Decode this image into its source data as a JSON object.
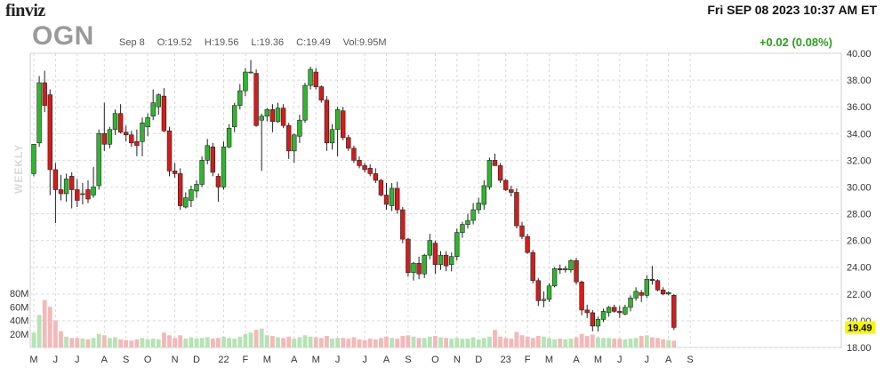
{
  "header": {
    "logo": "finviz",
    "datetime": "Fri SEP 08 2023 10:37 AM ET",
    "ticker": "OGN",
    "date_label": "Sep 8",
    "open": "O:19.52",
    "high": "H:19.56",
    "low": "L:19.36",
    "close": "C:19.49",
    "volume": "Vol:9.95M",
    "change": "+0.02 (0.08%)",
    "period": "WEEKLY"
  },
  "colors": {
    "up": "#2fb62f",
    "down": "#d41c1c",
    "vol_up": "#b5e3b5",
    "vol_down": "#f4b8b8",
    "grid": "#d9d9d9",
    "last_bg": "#f7f700",
    "change_text": "#2aa11a"
  },
  "chart_data": {
    "type": "candlestick",
    "title": "OGN",
    "interval": "weekly",
    "y_ticks": [
      "40.00",
      "38.00",
      "36.00",
      "34.00",
      "32.00",
      "30.00",
      "28.00",
      "26.00",
      "24.00",
      "22.00",
      "20.00",
      "18.00"
    ],
    "ylim": [
      18,
      40
    ],
    "volume_ticks": [
      "80M",
      "60M",
      "40M",
      "20M"
    ],
    "volume_ylim": [
      0,
      80
    ],
    "last_price": "19.49",
    "x_labels": [
      {
        "label": "M",
        "i": 0
      },
      {
        "label": "J",
        "i": 4
      },
      {
        "label": "J",
        "i": 8
      },
      {
        "label": "A",
        "i": 13
      },
      {
        "label": "S",
        "i": 17
      },
      {
        "label": "O",
        "i": 21
      },
      {
        "label": "N",
        "i": 26
      },
      {
        "label": "D",
        "i": 30
      },
      {
        "label": "22",
        "i": 35
      },
      {
        "label": "F",
        "i": 39
      },
      {
        "label": "M",
        "i": 43
      },
      {
        "label": "A",
        "i": 48
      },
      {
        "label": "M",
        "i": 52
      },
      {
        "label": "J",
        "i": 56
      },
      {
        "label": "J",
        "i": 61
      },
      {
        "label": "A",
        "i": 65
      },
      {
        "label": "S",
        "i": 69
      },
      {
        "label": "O",
        "i": 74
      },
      {
        "label": "N",
        "i": 78
      },
      {
        "label": "D",
        "i": 82
      },
      {
        "label": "23",
        "i": 87
      },
      {
        "label": "F",
        "i": 91
      },
      {
        "label": "M",
        "i": 95
      },
      {
        "label": "A",
        "i": 100
      },
      {
        "label": "M",
        "i": 104
      },
      {
        "label": "J",
        "i": 108
      },
      {
        "label": "J",
        "i": 113
      },
      {
        "label": "A",
        "i": 117
      },
      {
        "label": "S",
        "i": 121
      }
    ],
    "candles": [
      [
        31.0,
        33.2,
        30.8,
        33.2,
        22
      ],
      [
        33.3,
        38.3,
        33.0,
        37.8,
        48
      ],
      [
        37.8,
        38.7,
        35.6,
        36.1,
        70
      ],
      [
        36.9,
        37.3,
        29.4,
        31.3,
        60
      ],
      [
        31.3,
        31.8,
        27.3,
        29.8,
        40
      ],
      [
        29.8,
        30.9,
        29.0,
        29.5,
        24
      ],
      [
        29.5,
        31.0,
        28.9,
        30.6,
        16
      ],
      [
        30.8,
        31.1,
        28.4,
        29.8,
        14
      ],
      [
        29.8,
        30.6,
        28.5,
        29.0,
        14
      ],
      [
        29.5,
        30.3,
        28.7,
        29.5,
        13
      ],
      [
        29.8,
        30.5,
        28.8,
        29.1,
        12
      ],
      [
        29.4,
        31.5,
        29.2,
        30.0,
        14
      ],
      [
        30.1,
        34.3,
        29.8,
        34.0,
        20
      ],
      [
        34.0,
        36.3,
        32.7,
        33.2,
        18
      ],
      [
        33.2,
        34.5,
        32.9,
        34.3,
        14
      ],
      [
        34.3,
        35.8,
        33.9,
        35.5,
        15
      ],
      [
        35.5,
        36.2,
        34.0,
        34.1,
        12
      ],
      [
        34.1,
        34.6,
        33.4,
        33.9,
        11
      ],
      [
        33.9,
        34.2,
        33.0,
        33.3,
        10
      ],
      [
        33.4,
        34.3,
        32.3,
        33.1,
        12
      ],
      [
        33.4,
        35.2,
        32.3,
        34.8,
        14
      ],
      [
        34.5,
        35.5,
        33.8,
        35.2,
        12
      ],
      [
        35.3,
        37.3,
        35.0,
        36.3,
        13
      ],
      [
        36.0,
        37.0,
        35.4,
        36.9,
        12
      ],
      [
        36.8,
        37.4,
        34.1,
        34.2,
        22
      ],
      [
        34.2,
        34.5,
        30.8,
        31.2,
        18
      ],
      [
        31.2,
        31.8,
        30.7,
        31.0,
        14
      ],
      [
        31.0,
        31.4,
        28.3,
        28.6,
        18
      ],
      [
        28.5,
        29.6,
        28.4,
        29.2,
        13
      ],
      [
        29.0,
        30.1,
        28.5,
        29.8,
        15
      ],
      [
        29.7,
        30.5,
        29.2,
        30.2,
        13
      ],
      [
        30.2,
        32.3,
        30.0,
        32.0,
        14
      ],
      [
        32.0,
        33.6,
        31.7,
        33.1,
        15
      ],
      [
        33.0,
        33.3,
        30.8,
        31.1,
        13
      ],
      [
        30.8,
        31.0,
        28.9,
        30.0,
        14
      ],
      [
        30.0,
        33.4,
        29.8,
        33.0,
        16
      ],
      [
        33.0,
        34.7,
        32.9,
        34.4,
        14
      ],
      [
        34.5,
        36.3,
        34.1,
        36.1,
        13
      ],
      [
        36.1,
        37.7,
        35.8,
        37.2,
        16
      ],
      [
        37.2,
        38.9,
        36.8,
        38.6,
        20
      ],
      [
        38.6,
        39.5,
        38.5,
        38.6,
        22
      ],
      [
        38.5,
        38.8,
        34.5,
        34.6,
        26
      ],
      [
        35.0,
        35.5,
        31.2,
        35.3,
        28
      ],
      [
        35.3,
        35.9,
        34.9,
        35.8,
        18
      ],
      [
        35.8,
        36.2,
        34.1,
        34.9,
        17
      ],
      [
        34.9,
        36.3,
        34.8,
        35.9,
        15
      ],
      [
        35.9,
        36.2,
        34.4,
        34.6,
        14
      ],
      [
        34.6,
        34.8,
        32.1,
        32.7,
        16
      ],
      [
        32.7,
        34.0,
        31.8,
        33.9,
        13
      ],
      [
        33.8,
        35.4,
        33.3,
        35.0,
        15
      ],
      [
        35.0,
        37.8,
        34.8,
        37.6,
        18
      ],
      [
        37.6,
        39.0,
        37.3,
        38.8,
        16
      ],
      [
        38.6,
        38.9,
        37.3,
        37.5,
        15
      ],
      [
        37.5,
        37.6,
        36.3,
        36.5,
        14
      ],
      [
        36.5,
        36.8,
        32.7,
        33.3,
        17
      ],
      [
        33.3,
        34.7,
        32.8,
        34.3,
        13
      ],
      [
        34.3,
        36.0,
        32.3,
        35.8,
        14
      ],
      [
        35.7,
        36.0,
        33.5,
        33.7,
        14
      ],
      [
        33.7,
        33.9,
        32.7,
        32.9,
        13
      ],
      [
        32.9,
        33.1,
        31.8,
        32.0,
        15
      ],
      [
        32.0,
        32.3,
        31.4,
        31.6,
        12
      ],
      [
        31.6,
        31.8,
        31.1,
        31.3,
        11
      ],
      [
        31.4,
        31.7,
        30.8,
        31.0,
        13
      ],
      [
        31.0,
        31.4,
        30.3,
        30.5,
        12
      ],
      [
        30.5,
        30.6,
        29.3,
        29.4,
        14
      ],
      [
        29.4,
        30.3,
        28.3,
        28.7,
        16
      ],
      [
        28.6,
        30.3,
        28.2,
        29.9,
        14
      ],
      [
        29.9,
        30.4,
        28.0,
        28.3,
        13
      ],
      [
        28.3,
        28.5,
        25.8,
        26.1,
        17
      ],
      [
        26.1,
        26.2,
        23.3,
        23.6,
        18
      ],
      [
        23.6,
        24.4,
        23.0,
        24.3,
        16
      ],
      [
        24.3,
        24.8,
        23.1,
        23.5,
        14
      ],
      [
        23.5,
        25.0,
        23.2,
        24.9,
        14
      ],
      [
        24.9,
        26.5,
        24.6,
        26.0,
        16
      ],
      [
        25.8,
        26.0,
        23.5,
        24.2,
        17
      ],
      [
        24.2,
        25.2,
        23.8,
        24.9,
        15
      ],
      [
        24.9,
        25.2,
        23.7,
        24.1,
        14
      ],
      [
        24.2,
        25.1,
        23.7,
        24.8,
        13
      ],
      [
        24.8,
        26.9,
        24.5,
        26.6,
        14
      ],
      [
        26.6,
        27.4,
        26.2,
        27.2,
        13
      ],
      [
        27.2,
        28.0,
        26.9,
        27.5,
        13
      ],
      [
        27.5,
        28.8,
        27.2,
        28.3,
        15
      ],
      [
        28.3,
        29.2,
        28.0,
        28.8,
        12
      ],
      [
        28.7,
        30.5,
        28.3,
        30.1,
        14
      ],
      [
        30.0,
        32.2,
        29.8,
        32.0,
        16
      ],
      [
        32.0,
        32.5,
        31.6,
        31.6,
        26
      ],
      [
        31.6,
        31.8,
        30.3,
        30.5,
        16
      ],
      [
        30.5,
        30.6,
        29.7,
        29.8,
        14
      ],
      [
        29.8,
        30.1,
        29.3,
        29.6,
        13
      ],
      [
        29.6,
        29.9,
        26.9,
        27.1,
        23
      ],
      [
        27.1,
        27.4,
        26.1,
        26.3,
        18
      ],
      [
        26.3,
        26.5,
        25.0,
        25.1,
        16
      ],
      [
        25.1,
        25.3,
        22.8,
        23.0,
        14
      ],
      [
        23.0,
        23.2,
        21.1,
        21.5,
        17
      ],
      [
        21.5,
        22.2,
        21.0,
        21.6,
        16
      ],
      [
        21.6,
        22.8,
        21.4,
        22.6,
        14
      ],
      [
        22.6,
        24.0,
        22.5,
        23.9,
        12
      ],
      [
        23.9,
        24.2,
        23.5,
        23.8,
        13
      ],
      [
        23.8,
        24.1,
        23.6,
        23.9,
        12
      ],
      [
        23.8,
        24.6,
        23.6,
        24.5,
        13
      ],
      [
        24.5,
        24.7,
        22.7,
        22.9,
        15
      ],
      [
        22.9,
        23.0,
        20.4,
        20.8,
        20
      ],
      [
        20.8,
        21.2,
        20.2,
        20.6,
        17
      ],
      [
        20.6,
        20.8,
        19.2,
        19.6,
        19
      ],
      [
        19.6,
        20.3,
        19.2,
        20.1,
        15
      ],
      [
        20.1,
        20.9,
        19.9,
        20.7,
        14
      ],
      [
        20.6,
        21.1,
        20.3,
        21.0,
        14
      ],
      [
        21.0,
        21.2,
        20.6,
        20.7,
        13
      ],
      [
        20.7,
        21.1,
        20.2,
        20.6,
        13
      ],
      [
        20.5,
        21.2,
        20.4,
        21.0,
        12
      ],
      [
        21.0,
        21.9,
        20.7,
        21.7,
        13
      ],
      [
        21.7,
        22.5,
        21.5,
        22.2,
        14
      ],
      [
        22.1,
        22.3,
        21.4,
        21.9,
        17
      ],
      [
        21.9,
        23.4,
        21.7,
        23.1,
        18
      ],
      [
        23.1,
        24.1,
        22.7,
        23.0,
        15
      ],
      [
        23.0,
        23.1,
        22.2,
        22.3,
        14
      ],
      [
        22.3,
        22.5,
        21.9,
        22.0,
        12
      ],
      [
        22.0,
        22.2,
        21.9,
        22.1,
        11
      ],
      [
        21.9,
        22.0,
        19.3,
        19.5,
        10
      ]
    ]
  }
}
